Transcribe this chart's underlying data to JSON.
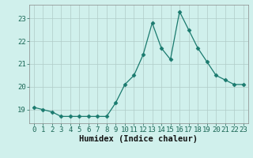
{
  "x": [
    0,
    1,
    2,
    3,
    4,
    5,
    6,
    7,
    8,
    9,
    10,
    11,
    12,
    13,
    14,
    15,
    16,
    17,
    18,
    19,
    20,
    21,
    22,
    23
  ],
  "y": [
    19.1,
    19.0,
    18.9,
    18.7,
    18.7,
    18.7,
    18.7,
    18.7,
    18.7,
    19.3,
    20.1,
    20.5,
    21.4,
    22.8,
    21.7,
    21.2,
    23.3,
    22.5,
    21.7,
    21.1,
    20.5,
    20.3,
    20.1,
    20.1
  ],
  "line_color": "#1a7a6e",
  "marker": "D",
  "marker_size": 2.5,
  "xlabel": "Humidex (Indice chaleur)",
  "xlim": [
    -0.5,
    23.5
  ],
  "ylim": [
    18.4,
    23.6
  ],
  "yticks": [
    19,
    20,
    21,
    22,
    23
  ],
  "xticks": [
    0,
    1,
    2,
    3,
    4,
    5,
    6,
    7,
    8,
    9,
    10,
    11,
    12,
    13,
    14,
    15,
    16,
    17,
    18,
    19,
    20,
    21,
    22,
    23
  ],
  "bg_color": "#d0f0ec",
  "grid_color": "#b0ccc8",
  "tick_label_color": "#1a6655",
  "xlabel_color": "#111111",
  "font_size": 6.5,
  "xlabel_size": 7.5
}
